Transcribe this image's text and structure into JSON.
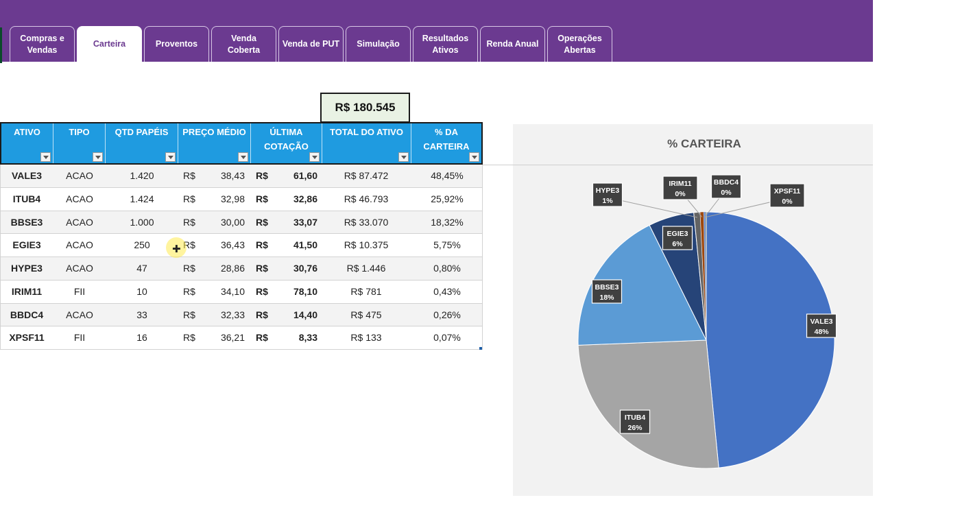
{
  "tabs": [
    {
      "label": "Compras e Vendas",
      "active": false
    },
    {
      "label": "Carteira",
      "active": true
    },
    {
      "label": "Proventos",
      "active": false
    },
    {
      "label": "Venda Coberta",
      "active": false
    },
    {
      "label": "Venda de PUT",
      "active": false
    },
    {
      "label": "Simulação",
      "active": false
    },
    {
      "label": "Resultados Ativos",
      "active": false
    },
    {
      "label": "Renda Anual",
      "active": false
    },
    {
      "label": "Operações Abertas",
      "active": false
    }
  ],
  "total": "R$ 180.545",
  "table": {
    "headers": [
      "ATIVO",
      "TIPO",
      "QTD PAPÉIS",
      "PREÇO MÉDIO",
      "ÚLTIMA COTAÇÃO",
      "TOTAL DO ATIVO",
      "% DA CARTEIRA"
    ],
    "currency": "R$",
    "rows": [
      {
        "ativo": "VALE3",
        "tipo": "ACAO",
        "qtd": "1.420",
        "preco_medio": "38,43",
        "ultima": "61,60",
        "total": "R$ 87.472",
        "pct": "48,45%"
      },
      {
        "ativo": "ITUB4",
        "tipo": "ACAO",
        "qtd": "1.424",
        "preco_medio": "32,98",
        "ultima": "32,86",
        "total": "R$ 46.793",
        "pct": "25,92%"
      },
      {
        "ativo": "BBSE3",
        "tipo": "ACAO",
        "qtd": "1.000",
        "preco_medio": "30,00",
        "ultima": "33,07",
        "total": "R$ 33.070",
        "pct": "18,32%"
      },
      {
        "ativo": "EGIE3",
        "tipo": "ACAO",
        "qtd": "250",
        "preco_medio": "36,43",
        "ultima": "41,50",
        "total": "R$ 10.375",
        "pct": "5,75%"
      },
      {
        "ativo": "HYPE3",
        "tipo": "ACAO",
        "qtd": "47",
        "preco_medio": "28,86",
        "ultima": "30,76",
        "total": "R$ 1.446",
        "pct": "0,80%"
      },
      {
        "ativo": "IRIM11",
        "tipo": "FII",
        "qtd": "10",
        "preco_medio": "34,10",
        "ultima": "78,10",
        "total": "R$ 781",
        "pct": "0,43%"
      },
      {
        "ativo": "BBDC4",
        "tipo": "ACAO",
        "qtd": "33",
        "preco_medio": "32,33",
        "ultima": "14,40",
        "total": "R$ 475",
        "pct": "0,26%"
      },
      {
        "ativo": "XPSF11",
        "tipo": "FII",
        "qtd": "16",
        "preco_medio": "36,21",
        "ultima": "8,33",
        "total": "R$ 133",
        "pct": "0,07%"
      }
    ]
  },
  "chart_data": {
    "type": "pie",
    "title": "% CARTEIRA",
    "slices": [
      {
        "label": "VALE3",
        "value": 48.45,
        "display": "48%",
        "color": "#4472c4"
      },
      {
        "label": "ITUB4",
        "value": 25.92,
        "display": "26%",
        "color": "#a5a5a5"
      },
      {
        "label": "BBSE3",
        "value": 18.32,
        "display": "18%",
        "color": "#5b9bd5"
      },
      {
        "label": "EGIE3",
        "value": 5.75,
        "display": "6%",
        "color": "#264478"
      },
      {
        "label": "HYPE3",
        "value": 0.8,
        "display": "1%",
        "color": "#636363"
      },
      {
        "label": "IRIM11",
        "value": 0.43,
        "display": "0%",
        "color": "#9e480e"
      },
      {
        "label": "BBDC4",
        "value": 0.26,
        "display": "0%",
        "color": "#698ed0"
      },
      {
        "label": "XPSF11",
        "value": 0.07,
        "display": "0%",
        "color": "#997300"
      }
    ]
  }
}
